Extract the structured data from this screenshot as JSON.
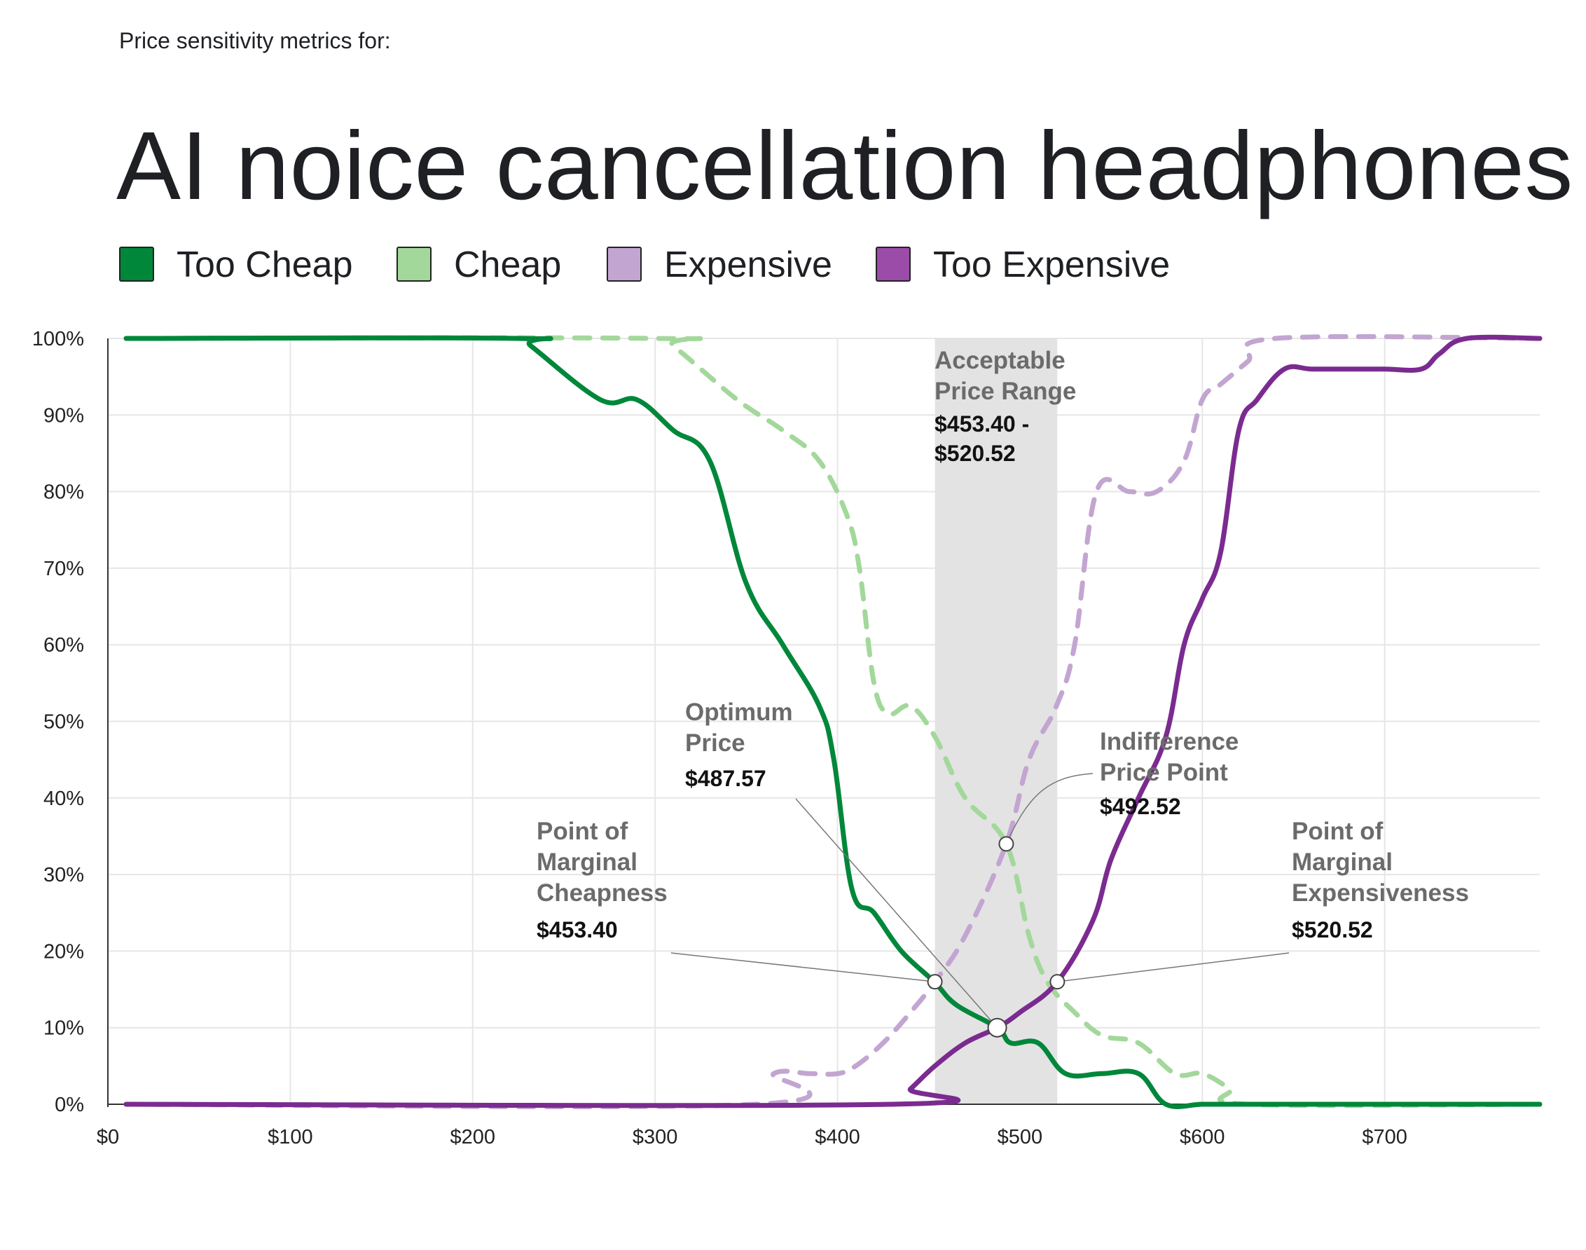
{
  "header": {
    "subtitle": "Price sensitivity metrics for:",
    "title": "AI noice cancellation headphones"
  },
  "legend": [
    {
      "label": "Too Cheap",
      "color": "#00873a"
    },
    {
      "label": "Cheap",
      "color": "#a3d89b"
    },
    {
      "label": "Expensive",
      "color": "#c3a5d1"
    },
    {
      "label": "Too Expensive",
      "color": "#7b2b90"
    }
  ],
  "annotations": {
    "range": {
      "line1": "Acceptable",
      "line2": "Price Range",
      "val1": "$453.40 -",
      "val2": "$520.52"
    },
    "optimum": {
      "line1": "Optimum",
      "line2": "Price",
      "val": "$487.57"
    },
    "indifference": {
      "line1": "Indifference",
      "line2": "Price Point",
      "val": "$492.52"
    },
    "pmc": {
      "line1": "Point of",
      "line2": "Marginal",
      "line3": "Cheapness",
      "val": "$453.40"
    },
    "pme": {
      "line1": "Point of",
      "line2": "Marginal",
      "line3": "Expensiveness",
      "val": "$520.52"
    }
  },
  "chart_data": {
    "type": "line",
    "title": "AI noice cancellation headphones",
    "x_tick_labels": [
      "$0",
      "$100",
      "$200",
      "$300",
      "$400",
      "$500",
      "$600",
      "$700"
    ],
    "y_tick_labels": [
      "0%",
      "10%",
      "20%",
      "30%",
      "40%",
      "50%",
      "60%",
      "70%",
      "80%",
      "90%",
      "100%"
    ],
    "xlim": [
      0,
      785
    ],
    "ylim": [
      0,
      100
    ],
    "grid": true,
    "legend_position": "top",
    "acceptable_range": [
      453.4,
      520.52
    ],
    "key_points": [
      {
        "name": "Point of Marginal Cheapness",
        "x": 453.4,
        "y": 16
      },
      {
        "name": "Optimum Price",
        "x": 487.57,
        "y": 10
      },
      {
        "name": "Indifference Price Point",
        "x": 492.52,
        "y": 34
      },
      {
        "name": "Point of Marginal Expensiveness",
        "x": 520.52,
        "y": 16
      }
    ],
    "series": [
      {
        "name": "Too Cheap",
        "color": "#00873a",
        "dashed": false,
        "points": [
          [
            10,
            100
          ],
          [
            225,
            100
          ],
          [
            232,
            99
          ],
          [
            270,
            92
          ],
          [
            290,
            92
          ],
          [
            310,
            88
          ],
          [
            330,
            84
          ],
          [
            350,
            68
          ],
          [
            370,
            60
          ],
          [
            390,
            52
          ],
          [
            398,
            45
          ],
          [
            408,
            28
          ],
          [
            420,
            25
          ],
          [
            435,
            20
          ],
          [
            453,
            16
          ],
          [
            465,
            13
          ],
          [
            487.57,
            10
          ],
          [
            495,
            8
          ],
          [
            510,
            8
          ],
          [
            525,
            4
          ],
          [
            545,
            4
          ],
          [
            565,
            4
          ],
          [
            580,
            0
          ],
          [
            600,
            0
          ],
          [
            620,
            0
          ],
          [
            785,
            0
          ]
        ]
      },
      {
        "name": "Cheap",
        "color": "#a3d89b",
        "dashed": false,
        "dash": true,
        "points": [
          [
            10,
            100
          ],
          [
            300,
            100
          ],
          [
            310,
            99
          ],
          [
            345,
            92
          ],
          [
            370,
            88
          ],
          [
            390,
            84
          ],
          [
            405,
            77
          ],
          [
            412,
            70
          ],
          [
            420,
            55
          ],
          [
            428,
            51
          ],
          [
            440,
            52
          ],
          [
            453.4,
            48
          ],
          [
            470,
            40
          ],
          [
            492.52,
            34
          ],
          [
            505,
            22
          ],
          [
            515,
            16
          ],
          [
            530,
            12
          ],
          [
            545,
            9
          ],
          [
            565,
            8
          ],
          [
            585,
            4
          ],
          [
            600,
            4
          ],
          [
            615,
            2
          ],
          [
            625,
            0
          ],
          [
            785,
            0
          ]
        ]
      },
      {
        "name": "Expensive",
        "color": "#c3a5d1",
        "dashed": true,
        "points": [
          [
            10,
            0
          ],
          [
            355,
            0
          ],
          [
            365,
            4
          ],
          [
            385,
            4
          ],
          [
            400,
            4
          ],
          [
            410,
            5
          ],
          [
            425,
            8
          ],
          [
            440,
            12
          ],
          [
            453.4,
            16
          ],
          [
            470,
            22
          ],
          [
            492.52,
            34
          ],
          [
            505,
            45
          ],
          [
            520,
            52
          ],
          [
            530,
            60
          ],
          [
            542,
            80
          ],
          [
            560,
            80
          ],
          [
            575,
            80
          ],
          [
            590,
            84
          ],
          [
            600,
            92
          ],
          [
            610,
            94
          ],
          [
            625,
            97
          ],
          [
            640,
            100
          ],
          [
            785,
            100
          ]
        ]
      },
      {
        "name": "Too Expensive",
        "color": "#7b2b90",
        "dashed": false,
        "points": [
          [
            10,
            0
          ],
          [
            430,
            0
          ],
          [
            440,
            2
          ],
          [
            453.4,
            5
          ],
          [
            470,
            8
          ],
          [
            487.57,
            10
          ],
          [
            500,
            12
          ],
          [
            520.52,
            16
          ],
          [
            540,
            24
          ],
          [
            550,
            32
          ],
          [
            565,
            40
          ],
          [
            580,
            48
          ],
          [
            590,
            60
          ],
          [
            600,
            66
          ],
          [
            610,
            72
          ],
          [
            620,
            88
          ],
          [
            630,
            92
          ],
          [
            645,
            96
          ],
          [
            660,
            96
          ],
          [
            680,
            96
          ],
          [
            700,
            96
          ],
          [
            720,
            96
          ],
          [
            730,
            98
          ],
          [
            745,
            100
          ],
          [
            785,
            100
          ]
        ]
      }
    ]
  }
}
